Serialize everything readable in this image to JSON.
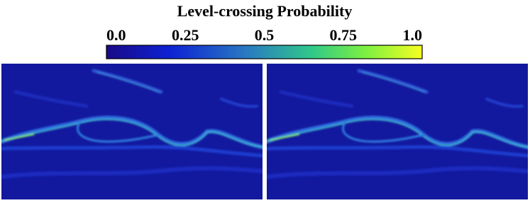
{
  "title": "Level-crossing Probability",
  "colorbar": {
    "lim": [
      0,
      1
    ],
    "ticks": [
      {
        "value": 0,
        "label": "0.0"
      },
      0.25,
      0.5,
      0.75,
      {
        "value": 1,
        "label": "1.0"
      }
    ]
  }
}
